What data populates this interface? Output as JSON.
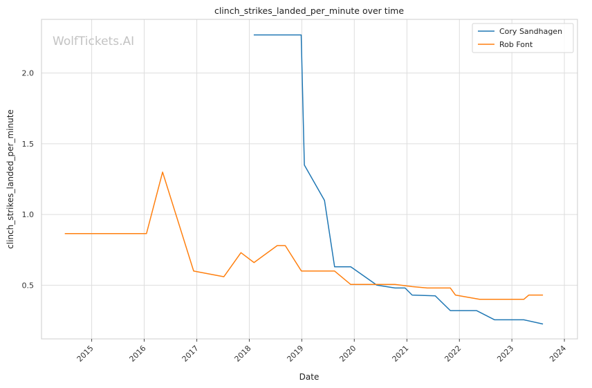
{
  "chart_data": {
    "type": "line",
    "title": "clinch_strikes_landed_per_minute over time",
    "xlabel": "Date",
    "ylabel": "clinch_strikes_landed_per_minute",
    "watermark": "WolfTickets.AI",
    "grid": true,
    "legend_position": "top-right",
    "xlim": [
      "2014-01-17",
      "2024-04-01"
    ],
    "ylim": [
      0.12,
      2.38
    ],
    "x_ticks": [
      {
        "date": "2015-01-01",
        "label": "2015"
      },
      {
        "date": "2016-01-01",
        "label": "2016"
      },
      {
        "date": "2017-01-01",
        "label": "2017"
      },
      {
        "date": "2018-01-01",
        "label": "2018"
      },
      {
        "date": "2019-01-01",
        "label": "2019"
      },
      {
        "date": "2020-01-01",
        "label": "2020"
      },
      {
        "date": "2021-01-01",
        "label": "2021"
      },
      {
        "date": "2022-01-01",
        "label": "2022"
      },
      {
        "date": "2023-01-01",
        "label": "2023"
      },
      {
        "date": "2024-01-01",
        "label": "2024"
      }
    ],
    "y_ticks": [
      {
        "value": 0.5,
        "label": "0.5"
      },
      {
        "value": 1.0,
        "label": "1.0"
      },
      {
        "value": 1.5,
        "label": "1.5"
      },
      {
        "value": 2.0,
        "label": "2.0"
      }
    ],
    "series": [
      {
        "name": "Cory Sandhagen",
        "color": "#1f77b4",
        "points": [
          {
            "x": "2018-02-01",
            "y": 2.27
          },
          {
            "x": "2018-12-28",
            "y": 2.27
          },
          {
            "x": "2019-01-19",
            "y": 1.35
          },
          {
            "x": "2019-06-08",
            "y": 1.1
          },
          {
            "x": "2019-08-17",
            "y": 0.63
          },
          {
            "x": "2019-12-07",
            "y": 0.63
          },
          {
            "x": "2020-06-06",
            "y": 0.5
          },
          {
            "x": "2020-10-10",
            "y": 0.48
          },
          {
            "x": "2020-12-19",
            "y": 0.48
          },
          {
            "x": "2021-02-06",
            "y": 0.43
          },
          {
            "x": "2021-07-17",
            "y": 0.425
          },
          {
            "x": "2021-10-30",
            "y": 0.32
          },
          {
            "x": "2022-04-30",
            "y": 0.32
          },
          {
            "x": "2022-09-03",
            "y": 0.255
          },
          {
            "x": "2023-03-25",
            "y": 0.255
          },
          {
            "x": "2023-08-05",
            "y": 0.225
          }
        ]
      },
      {
        "name": "Rob Font",
        "color": "#ff7f0e",
        "points": [
          {
            "x": "2014-06-28",
            "y": 0.865
          },
          {
            "x": "2016-01-17",
            "y": 0.865
          },
          {
            "x": "2016-05-08",
            "y": 1.3
          },
          {
            "x": "2016-12-10",
            "y": 0.6
          },
          {
            "x": "2017-07-08",
            "y": 0.56
          },
          {
            "x": "2017-11-04",
            "y": 0.73
          },
          {
            "x": "2018-02-03",
            "y": 0.66
          },
          {
            "x": "2018-07-14",
            "y": 0.78
          },
          {
            "x": "2018-09-08",
            "y": 0.78
          },
          {
            "x": "2018-12-29",
            "y": 0.6
          },
          {
            "x": "2019-08-17",
            "y": 0.6
          },
          {
            "x": "2019-12-07",
            "y": 0.505
          },
          {
            "x": "2020-10-10",
            "y": 0.505
          },
          {
            "x": "2021-02-06",
            "y": 0.49
          },
          {
            "x": "2021-05-22",
            "y": 0.48
          },
          {
            "x": "2021-10-30",
            "y": 0.48
          },
          {
            "x": "2021-12-04",
            "y": 0.43
          },
          {
            "x": "2022-05-21",
            "y": 0.4
          },
          {
            "x": "2023-03-25",
            "y": 0.4
          },
          {
            "x": "2023-04-29",
            "y": 0.43
          },
          {
            "x": "2023-08-05",
            "y": 0.43
          }
        ]
      }
    ]
  }
}
